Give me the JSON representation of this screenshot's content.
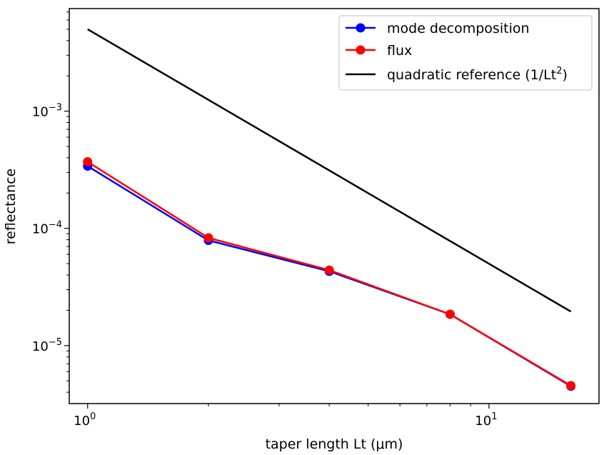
{
  "chart_data": {
    "type": "line",
    "xscale": "log",
    "yscale": "log",
    "xlabel": "taper length Lt (μm)",
    "ylabel": "reflectance",
    "xlim": [
      0.9,
      18.8
    ],
    "ylim": [
      3.2e-06,
      0.0075
    ],
    "x_ticks": [
      {
        "value": 1,
        "base": "10",
        "exp": "0"
      },
      {
        "value": 10,
        "base": "10",
        "exp": "1"
      }
    ],
    "y_ticks": [
      {
        "value": 1e-05,
        "base": "10",
        "exp": "−5"
      },
      {
        "value": 0.0001,
        "base": "10",
        "exp": "−4"
      },
      {
        "value": 0.001,
        "base": "10",
        "exp": "−3"
      }
    ],
    "grid": false,
    "legend_position": "top-right",
    "series": [
      {
        "name": "mode decomposition",
        "color": "#0000ff",
        "marker": "circle",
        "x": [
          1,
          2,
          4,
          8,
          16
        ],
        "y": [
          0.00034,
          7.9e-05,
          4.3e-05,
          1.85e-05,
          4.5e-06
        ]
      },
      {
        "name": "flux",
        "color": "#ff0000",
        "marker": "circle",
        "x": [
          1,
          2,
          4,
          8,
          16
        ],
        "y": [
          0.00037,
          8.3e-05,
          4.4e-05,
          1.85e-05,
          4.55e-06
        ]
      },
      {
        "name": "quadratic reference (1/Lt",
        "name_sup": "2",
        "name_tail": ")",
        "color": "#000000",
        "marker": "none",
        "x": [
          1,
          16
        ],
        "y": [
          0.005,
          1.95e-05
        ]
      }
    ]
  }
}
